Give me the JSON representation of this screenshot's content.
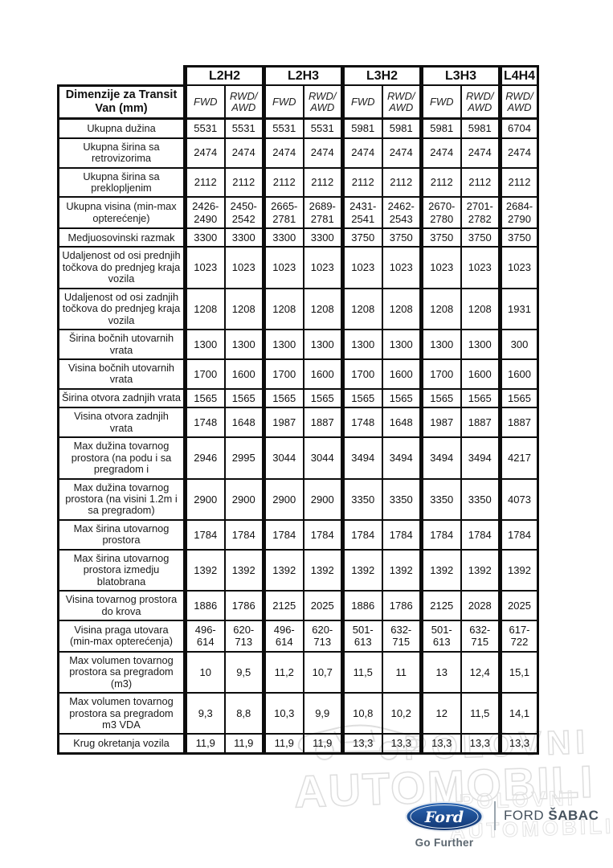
{
  "table": {
    "title": "Dimenzije za Transit Van (mm)",
    "groups": [
      {
        "label": "L2H2",
        "drives": [
          "FWD",
          "RWD/AWD"
        ]
      },
      {
        "label": "L2H3",
        "drives": [
          "FWD",
          "RWD/AWD"
        ]
      },
      {
        "label": "L3H2",
        "drives": [
          "FWD",
          "RWD/AWD"
        ]
      },
      {
        "label": "L3H3",
        "drives": [
          "FWD",
          "RWD/AWD"
        ]
      },
      {
        "label": "L4H4",
        "drives": [
          "RWD/AWD"
        ]
      }
    ],
    "rows": [
      {
        "label": "Ukupna dužina",
        "values": [
          "5531",
          "5531",
          "5531",
          "5531",
          "5981",
          "5981",
          "5981",
          "5981",
          "6704"
        ]
      },
      {
        "label": "Ukupna širina sa retrovizorima",
        "values": [
          "2474",
          "2474",
          "2474",
          "2474",
          "2474",
          "2474",
          "2474",
          "2474",
          "2474"
        ]
      },
      {
        "label": "Ukupna širina sa preklopljenim",
        "values": [
          "2112",
          "2112",
          "2112",
          "2112",
          "2112",
          "2112",
          "2112",
          "2112",
          "2112"
        ]
      },
      {
        "label": "Ukupna visina (min-max opterećenje)",
        "values": [
          "2426-2490",
          "2450-2542",
          "2665-2781",
          "2689-2781",
          "2431-2541",
          "2462-2543",
          "2670-2780",
          "2701-2782",
          "2684-2790"
        ]
      },
      {
        "label": "Medjuosovinski razmak",
        "values": [
          "3300",
          "3300",
          "3300",
          "3300",
          "3750",
          "3750",
          "3750",
          "3750",
          "3750"
        ]
      },
      {
        "label": "Udaljenost od osi prednjih točkova do prednjeg kraja vozila",
        "values": [
          "1023",
          "1023",
          "1023",
          "1023",
          "1023",
          "1023",
          "1023",
          "1023",
          "1023"
        ]
      },
      {
        "label": "Udaljenost od osi zadnjih točkova do prednjeg kraja vozila",
        "values": [
          "1208",
          "1208",
          "1208",
          "1208",
          "1208",
          "1208",
          "1208",
          "1208",
          "1931"
        ]
      },
      {
        "label": "Širina bočnih utovarnih vrata",
        "values": [
          "1300",
          "1300",
          "1300",
          "1300",
          "1300",
          "1300",
          "1300",
          "1300",
          "300"
        ]
      },
      {
        "label": "Visina bočnih utovarnih vrata",
        "values": [
          "1700",
          "1600",
          "1700",
          "1600",
          "1700",
          "1600",
          "1700",
          "1600",
          "1600"
        ]
      },
      {
        "label": "Širina otvora zadnjih vrata",
        "values": [
          "1565",
          "1565",
          "1565",
          "1565",
          "1565",
          "1565",
          "1565",
          "1565",
          "1565"
        ]
      },
      {
        "label": "Visina otvora zadnjih vrata",
        "values": [
          "1748",
          "1648",
          "1987",
          "1887",
          "1748",
          "1648",
          "1987",
          "1887",
          "1887"
        ]
      },
      {
        "label": "Max dužina tovarnog prostora (na podu i sa pregradom i",
        "values": [
          "2946",
          "2995",
          "3044",
          "3044",
          "3494",
          "3494",
          "3494",
          "3494",
          "4217"
        ]
      },
      {
        "label": "Max dužina tovarnog prostora (na visini 1.2m i sa pregradom)",
        "values": [
          "2900",
          "2900",
          "2900",
          "2900",
          "3350",
          "3350",
          "3350",
          "3350",
          "4073"
        ]
      },
      {
        "label": "Max širina utovarnog prostora",
        "values": [
          "1784",
          "1784",
          "1784",
          "1784",
          "1784",
          "1784",
          "1784",
          "1784",
          "1784"
        ]
      },
      {
        "label": "Max širina utovarnog prostora izmedju blatobrana",
        "values": [
          "1392",
          "1392",
          "1392",
          "1392",
          "1392",
          "1392",
          "1392",
          "1392",
          "1392"
        ]
      },
      {
        "label": "Visina tovarnog prostora do krova",
        "values": [
          "1886",
          "1786",
          "2125",
          "2025",
          "1886",
          "1786",
          "2125",
          "2028",
          "2025"
        ]
      },
      {
        "label": "Visina praga utovara (min-max opterećenja)",
        "values": [
          "496-614",
          "620-713",
          "496-614",
          "620-713",
          "501-613",
          "632-715",
          "501-613",
          "632-715",
          "617-722"
        ]
      },
      {
        "label": "Max volumen tovarnog prostora sa pregradom (m3)",
        "values": [
          "10",
          "9,5",
          "11,2",
          "10,7",
          "11,5",
          "11",
          "13",
          "12,4",
          "15,1"
        ]
      },
      {
        "label": "Max volumen tovarnog prostora sa pregradom m3 VDA",
        "values": [
          "9,3",
          "8,8",
          "10,3",
          "9,9",
          "10,8",
          "10,2",
          "12",
          "11,5",
          "14,1"
        ]
      },
      {
        "label": "Krug okretanja vozila",
        "values": [
          "11,9",
          "11,9",
          "11,9",
          "11,9",
          "13,3",
          "13,3",
          "13,3",
          "13,3",
          "13,3"
        ]
      }
    ]
  },
  "watermark": {
    "word1": "POLOVNI",
    "word2": "AUTOMOBILI",
    "word3": "POLOVNI",
    "word4": "AUTOMOBILI",
    "color": "#dedede"
  },
  "footer": {
    "brand_script": "Ford",
    "tagline": "Go Further",
    "dealer_first": "FORD",
    "dealer_second": "ŠABAC"
  },
  "colors": {
    "ford_blue_light": "#2a5fae",
    "ford_blue_dark": "#153a80",
    "dealer_text": "#46525e",
    "tagline_text": "#5c6770",
    "table_border": "#0d0d0d"
  }
}
